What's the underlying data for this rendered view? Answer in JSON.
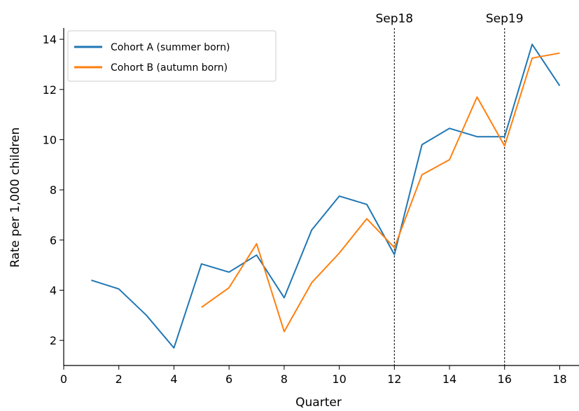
{
  "chart_data": {
    "type": "line",
    "title": "",
    "xlabel": "Quarter",
    "ylabel": "Rate per 1,000 children",
    "xlim": [
      0,
      18.7
    ],
    "ylim": [
      1.0,
      14.45
    ],
    "xticks": [
      0,
      2,
      4,
      6,
      8,
      10,
      12,
      14,
      16,
      18
    ],
    "yticks": [
      2,
      4,
      6,
      8,
      10,
      12,
      14
    ],
    "grid": false,
    "legend_position": "top-left",
    "vlines": [
      {
        "x": 12,
        "label": "Sep18",
        "style": "dashed",
        "color": "#000000"
      },
      {
        "x": 16,
        "label": "Sep19",
        "style": "dashed",
        "color": "#000000"
      }
    ],
    "series": [
      {
        "name": "Cohort A (summer born)",
        "color": "#1f77b4",
        "x": [
          1,
          2,
          3,
          4,
          5,
          6,
          7,
          8,
          9,
          10,
          11,
          12,
          13,
          14,
          15,
          16,
          17,
          18
        ],
        "y": [
          4.4,
          4.05,
          3.0,
          1.7,
          5.05,
          4.72,
          5.4,
          3.7,
          6.4,
          7.75,
          7.42,
          5.42,
          9.8,
          10.45,
          10.12,
          10.12,
          13.8,
          12.15
        ]
      },
      {
        "name": "Cohort B (autumn born)",
        "color": "#ff7f0e",
        "x": [
          5,
          6,
          7,
          8,
          9,
          10,
          11,
          12,
          13,
          14,
          15,
          16,
          17,
          18
        ],
        "y": [
          3.32,
          4.1,
          5.85,
          2.35,
          4.3,
          5.48,
          6.85,
          5.7,
          8.6,
          9.2,
          11.7,
          9.75,
          13.25,
          13.45
        ]
      }
    ]
  }
}
